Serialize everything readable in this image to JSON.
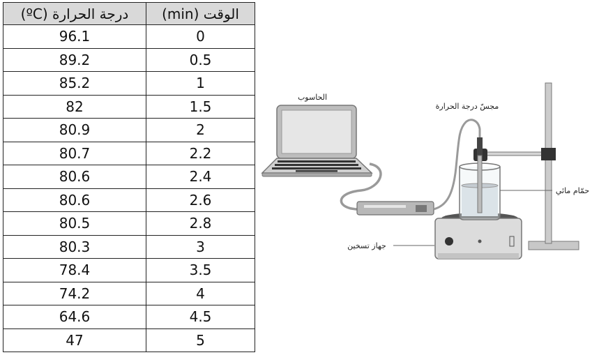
{
  "table": {
    "headers": [
      "درجة الحرارة (ºC)",
      "الوقت (min)"
    ],
    "rows": [
      [
        "96.1",
        "0"
      ],
      [
        "89.2",
        "0.5"
      ],
      [
        "85.2",
        "1"
      ],
      [
        "82",
        "1.5"
      ],
      [
        "80.9",
        "2"
      ],
      [
        "80.7",
        "2.2"
      ],
      [
        "80.6",
        "2.4"
      ],
      [
        "80.6",
        "2.6"
      ],
      [
        "80.5",
        "2.8"
      ],
      [
        "80.3",
        "3"
      ],
      [
        "78.4",
        "3.5"
      ],
      [
        "74.2",
        "4"
      ],
      [
        "64.6",
        "4.5"
      ],
      [
        "47",
        "5"
      ]
    ]
  },
  "diagram": {
    "labels": {
      "computer": "الحاسوب",
      "sensor": "مجسّ درجة الحرارة",
      "water_bath": "حمّام مائي",
      "heater": "جهاز تسخين"
    }
  }
}
